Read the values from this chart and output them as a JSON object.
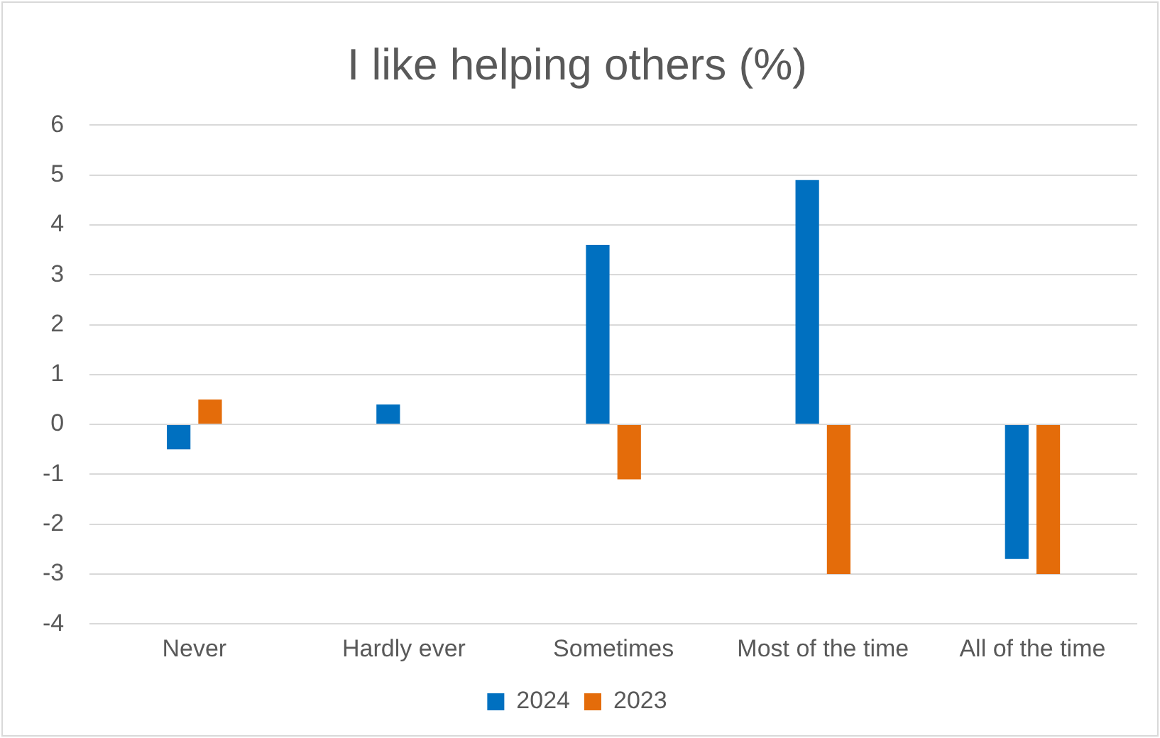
{
  "chart_data": {
    "type": "bar",
    "title": "I like helping others (%)",
    "categories": [
      "Never",
      "Hardly ever",
      "Sometimes",
      "Most of the time",
      "All of the time"
    ],
    "series": [
      {
        "name": "2024",
        "color": "#0070c0",
        "values": [
          -0.5,
          0.4,
          3.6,
          4.9,
          -2.7
        ]
      },
      {
        "name": "2023",
        "color": "#e46c0a",
        "values": [
          0.5,
          0,
          -1.1,
          -3,
          -3
        ]
      }
    ],
    "ylim": [
      -4,
      6
    ],
    "yticks": [
      -4,
      -3,
      -2,
      -1,
      0,
      1,
      2,
      3,
      4,
      5,
      6
    ],
    "grid": "y",
    "legend": "bottom"
  }
}
